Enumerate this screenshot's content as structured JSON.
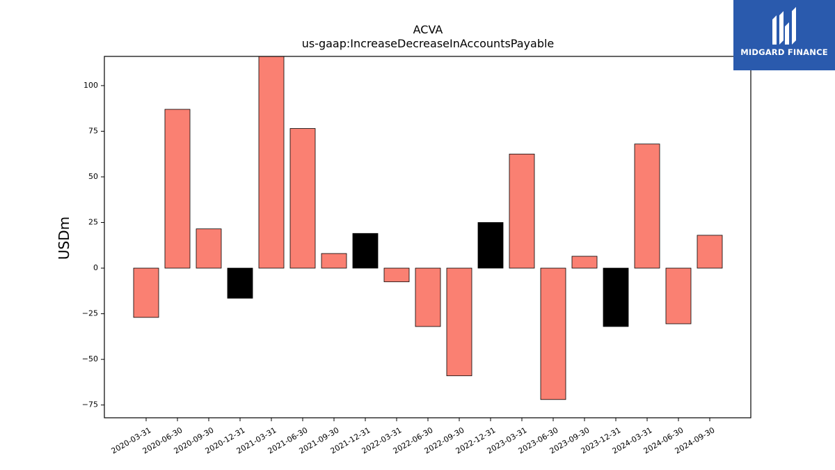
{
  "brand": {
    "name": "MIDGARD FINANCE",
    "bg_color": "#2a5aad",
    "mark_icon": "midgard-logo-mark"
  },
  "chart_data": {
    "type": "bar",
    "title": "ACVA",
    "subtitle": "us-gaap:IncreaseDecreaseInAccountsPayable",
    "xlabel": "",
    "ylabel": "USDm",
    "ylim": [
      -82,
      116
    ],
    "yticks": [
      -75,
      -50,
      -25,
      0,
      25,
      50,
      75,
      100
    ],
    "grid": false,
    "colors": {
      "default": "#fa8072",
      "highlight": "#000000",
      "edge": "#000000"
    },
    "categories": [
      "2020-03-31",
      "2020-06-30",
      "2020-09-30",
      "2020-12-31",
      "2021-03-31",
      "2021-06-30",
      "2021-09-30",
      "2021-12-31",
      "2022-03-31",
      "2022-06-30",
      "2022-09-30",
      "2022-12-31",
      "2023-03-31",
      "2023-06-30",
      "2023-09-30",
      "2023-12-31",
      "2024-03-31",
      "2024-06-30",
      "2024-09-30"
    ],
    "values": [
      -27,
      87,
      21.5,
      -16.5,
      118,
      76.5,
      8,
      19,
      -7.5,
      -32,
      -59,
      25,
      62.5,
      -72,
      6.5,
      -32,
      68,
      -30.5,
      18
    ],
    "highlighted": [
      false,
      false,
      false,
      true,
      false,
      false,
      false,
      true,
      false,
      false,
      false,
      true,
      false,
      false,
      false,
      true,
      false,
      false,
      false
    ]
  }
}
